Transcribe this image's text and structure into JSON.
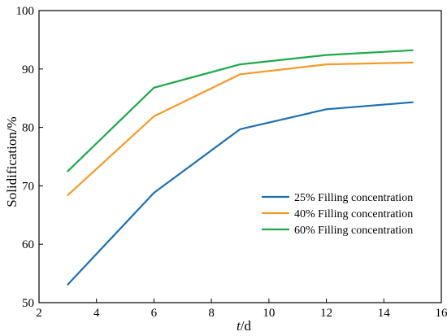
{
  "chart_data": {
    "type": "line",
    "xlabel_italic": "t",
    "xlabel_rest": "/d",
    "ylabel": "Solidification/%",
    "xlim": [
      2,
      16
    ],
    "ylim": [
      50,
      100
    ],
    "xticks": [
      2,
      4,
      6,
      8,
      10,
      12,
      14,
      16
    ],
    "yticks": [
      50,
      60,
      70,
      80,
      90,
      100
    ],
    "grid": false,
    "legend_position": "lower-right",
    "x": [
      3,
      6,
      9,
      12,
      15
    ],
    "series": [
      {
        "name": "25% Filling concentration",
        "color": "#1f6fb2",
        "values": [
          53.1,
          68.8,
          79.7,
          83.1,
          84.3
        ]
      },
      {
        "name": "40% Filling concentration",
        "color": "#f39a2a",
        "values": [
          68.4,
          81.9,
          89.1,
          90.8,
          91.1
        ]
      },
      {
        "name": "60% Filling concentration",
        "color": "#1fa84a",
        "values": [
          72.5,
          86.8,
          90.8,
          92.4,
          93.2
        ]
      }
    ]
  }
}
